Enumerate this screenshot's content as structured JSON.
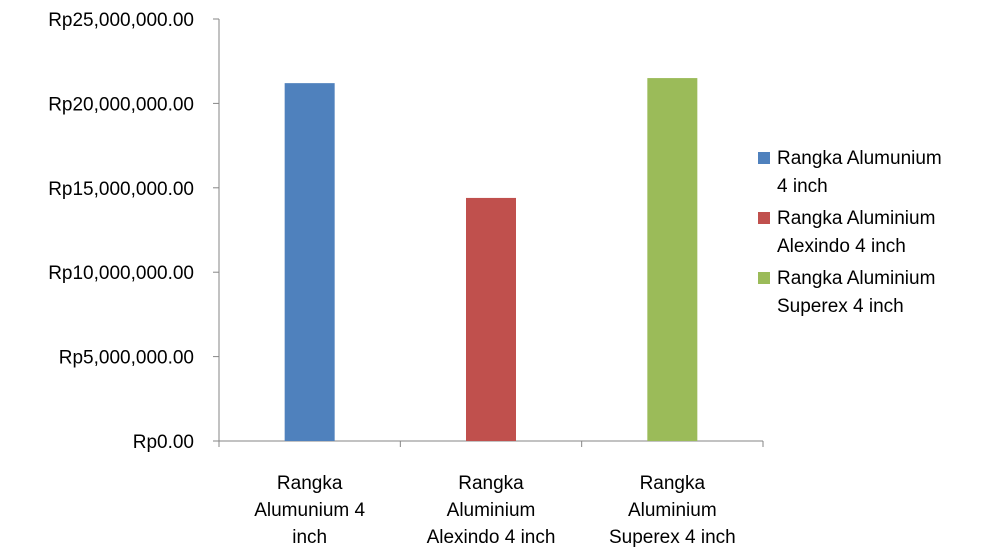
{
  "chart_data": {
    "type": "bar",
    "categories": [
      [
        "Rangka",
        "Alumunium 4",
        "inch"
      ],
      [
        "Rangka",
        "Aluminium",
        "Alexindo 4 inch"
      ],
      [
        "Rangka",
        "Aluminium",
        "Superex 4 inch"
      ]
    ],
    "values": [
      21200000,
      14400000,
      21500000
    ],
    "colors": [
      "#4f81bd",
      "#c0504d",
      "#9bbb59"
    ],
    "ylim": [
      0,
      25000000
    ],
    "yticks": [
      {
        "value": 0,
        "label": "Rp0.00"
      },
      {
        "value": 5000000,
        "label": "Rp5,000,000.00"
      },
      {
        "value": 10000000,
        "label": "Rp10,000,000.00"
      },
      {
        "value": 15000000,
        "label": "Rp15,000,000.00"
      },
      {
        "value": 20000000,
        "label": "Rp20,000,000.00"
      },
      {
        "value": 25000000,
        "label": "Rp25,000,000.00"
      }
    ],
    "grid": false,
    "legend_position": "right",
    "legend": [
      {
        "lines": [
          "Rangka Alumunium",
          "4 inch"
        ],
        "color": "#4f81bd"
      },
      {
        "lines": [
          "Rangka Aluminium",
          "Alexindo 4 inch"
        ],
        "color": "#c0504d"
      },
      {
        "lines": [
          "Rangka Aluminium",
          "Superex 4 inch"
        ],
        "color": "#9bbb59"
      }
    ]
  }
}
